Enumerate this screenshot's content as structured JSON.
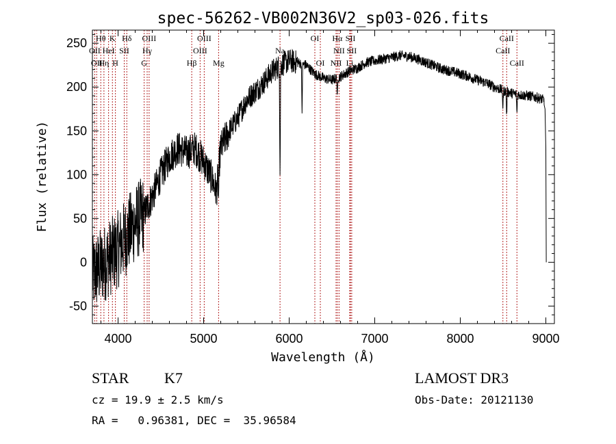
{
  "chart_data": {
    "type": "line",
    "title": "spec-56262-VB002N36V2_sp03-026.fits",
    "xlabel": "Wavelength (Å)",
    "ylabel": "Flux (relative)",
    "xlim": [
      3700,
      9100
    ],
    "ylim": [
      -70,
      265
    ],
    "x_ticks": [
      4000,
      5000,
      6000,
      7000,
      8000,
      9000
    ],
    "y_ticks": [
      -50,
      0,
      50,
      100,
      150,
      200,
      250
    ],
    "line_color": "#000000",
    "marker_color": "#b22222",
    "continuum": {
      "name": "spectrum",
      "x": [
        3700,
        3800,
        3900,
        4000,
        4100,
        4200,
        4300,
        4400,
        4500,
        4600,
        4700,
        4800,
        4900,
        5000,
        5100,
        5150,
        5200,
        5300,
        5400,
        5500,
        5600,
        5700,
        5800,
        5900,
        6000,
        6100,
        6200,
        6300,
        6400,
        6500,
        6600,
        6700,
        6800,
        6900,
        7000,
        7100,
        7200,
        7300,
        7400,
        7500,
        7600,
        7700,
        7800,
        7900,
        8000,
        8100,
        8200,
        8300,
        8400,
        8500,
        8600,
        8700,
        8800,
        8900,
        8980
      ],
      "y": [
        -15,
        -5,
        5,
        15,
        30,
        45,
        55,
        75,
        100,
        120,
        130,
        125,
        130,
        115,
        95,
        80,
        130,
        150,
        165,
        185,
        195,
        205,
        218,
        225,
        230,
        228,
        225,
        215,
        210,
        208,
        212,
        218,
        222,
        228,
        230,
        232,
        234,
        236,
        235,
        232,
        228,
        224,
        220,
        218,
        215,
        212,
        208,
        205,
        200,
        196,
        193,
        191,
        190,
        188,
        185
      ]
    },
    "absorption_dips": [
      {
        "x": 5893,
        "y": 90
      },
      {
        "x": 6563,
        "y": 185
      },
      {
        "x": 8498,
        "y": 175
      },
      {
        "x": 8542,
        "y": 165
      },
      {
        "x": 8662,
        "y": 168
      },
      {
        "x": 5175,
        "y": 75
      },
      {
        "x": 6150,
        "y": 170
      }
    ],
    "tail": {
      "x": [
        8990,
        9000,
        9005
      ],
      "y": [
        175,
        130,
        0
      ]
    },
    "spectral_lines": [
      {
        "wavelength": 3727,
        "label": "OII",
        "row": 1
      },
      {
        "wavelength": 3750,
        "label": "OII",
        "row": 2
      },
      {
        "wavelength": 3798,
        "label": "Hθ",
        "row": 0
      },
      {
        "wavelength": 3835,
        "label": "Hη",
        "row": 2
      },
      {
        "wavelength": 3889,
        "label": "HeI",
        "row": 1
      },
      {
        "wavelength": 3934,
        "label": "K",
        "row": 0
      },
      {
        "wavelength": 3969,
        "label": "H",
        "row": 2
      },
      {
        "wavelength": 4072,
        "label": "SII",
        "row": 1
      },
      {
        "wavelength": 4102,
        "label": "Hδ",
        "row": 0
      },
      {
        "wavelength": 4305,
        "label": "G",
        "row": 2
      },
      {
        "wavelength": 4340,
        "label": "Hγ",
        "row": 1
      },
      {
        "wavelength": 4363,
        "label": "OIII",
        "row": 0
      },
      {
        "wavelength": 4861,
        "label": "Hβ",
        "row": 2
      },
      {
        "wavelength": 4959,
        "label": "OIII",
        "row": 1
      },
      {
        "wavelength": 5007,
        "label": "OIII",
        "row": 0
      },
      {
        "wavelength": 5175,
        "label": "Mg",
        "row": 2
      },
      {
        "wavelength": 5893,
        "label": "Na",
        "row": 1
      },
      {
        "wavelength": 6300,
        "label": "OI",
        "row": 0
      },
      {
        "wavelength": 6364,
        "label": "OI",
        "row": 2
      },
      {
        "wavelength": 6548,
        "label": "NII",
        "row": 2
      },
      {
        "wavelength": 6563,
        "label": "Hα",
        "row": 0
      },
      {
        "wavelength": 6583,
        "label": "NII",
        "row": 1
      },
      {
        "wavelength": 6708,
        "label": "Li",
        "row": 2
      },
      {
        "wavelength": 6716,
        "label": "SII",
        "row": 0
      },
      {
        "wavelength": 6731,
        "label": "SII",
        "row": 1
      },
      {
        "wavelength": 8498,
        "label": "CaII",
        "row": 1
      },
      {
        "wavelength": 8542,
        "label": "CaII",
        "row": 0
      },
      {
        "wavelength": 8662,
        "label": "CaII",
        "row": 2
      }
    ]
  },
  "footer": {
    "object_class": "STAR",
    "subclass": "K7",
    "survey": "LAMOST DR3",
    "redshift": "cz = 19.9 ± 2.5 km/s",
    "obs_date": "Obs-Date: 20121130",
    "coords": "RA =   0.96381, DEC =  35.96584"
  }
}
